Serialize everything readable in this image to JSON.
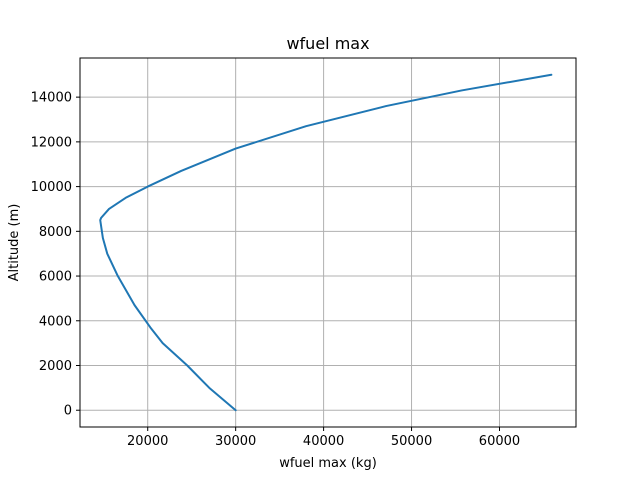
{
  "chart_data": {
    "type": "line",
    "title": "wfuel max",
    "xlabel": "wfuel max (kg)",
    "ylabel": "Altitude (m)",
    "xlim": [
      12300,
      68700
    ],
    "ylim": [
      -750,
      15750
    ],
    "xticks": [
      20000,
      30000,
      40000,
      50000,
      60000
    ],
    "xtick_labels": [
      "20000",
      "30000",
      "40000",
      "50000",
      "60000"
    ],
    "yticks": [
      0,
      2000,
      4000,
      6000,
      8000,
      10000,
      12000,
      14000
    ],
    "ytick_labels": [
      "0",
      "2000",
      "4000",
      "6000",
      "8000",
      "10000",
      "12000",
      "14000"
    ],
    "grid": true,
    "series": [
      {
        "color": "#1f77b4",
        "x": [
          30000,
          27000,
          24500,
          21700,
          20300,
          18500,
          16600,
          15400,
          14900,
          14600,
          14700,
          15600,
          17500,
          20000,
          23800,
          30000,
          38000,
          47100,
          55700,
          65900
        ],
        "y": [
          0,
          1000,
          2000,
          3000,
          3700,
          4700,
          6000,
          7000,
          7700,
          8500,
          8600,
          9000,
          9500,
          10000,
          10700,
          11700,
          12700,
          13600,
          14300,
          15000
        ]
      }
    ]
  }
}
